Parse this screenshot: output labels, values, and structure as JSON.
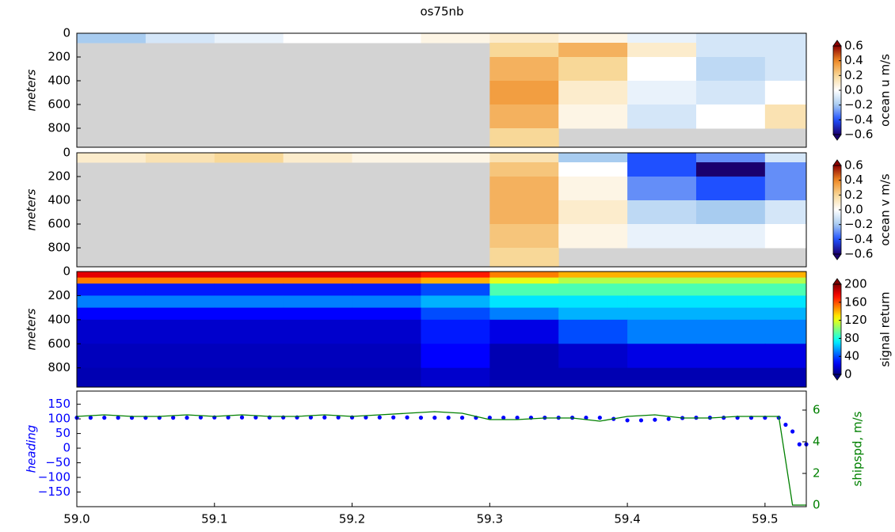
{
  "title": "os75nb",
  "chart_data": [
    {
      "type": "heatmap",
      "ylabel": "meters",
      "colorbar_label": "ocean u m/s",
      "colormap": "diverging",
      "missing_color": "#d3d3d3",
      "xlim": [
        59.0,
        59.53
      ],
      "ylim": [
        960,
        0
      ],
      "yticks": [
        0,
        200,
        400,
        600,
        800
      ],
      "clim": [
        -0.6,
        0.6
      ],
      "cticks": [
        0.6,
        0.4,
        0.2,
        {
          "value": 0.0,
          "label": "0.0"
        },
        {
          "value": -0.2,
          "label": "−0.2"
        },
        {
          "value": -0.4,
          "label": "−0.4"
        },
        {
          "value": -0.6,
          "label": "−0.6"
        }
      ],
      "xbins": [
        59.0,
        59.05,
        59.1,
        59.15,
        59.2,
        59.25,
        59.3,
        59.35,
        59.4,
        59.45,
        59.5,
        59.53
      ],
      "ybins": [
        0,
        80,
        200,
        400,
        600,
        800,
        960
      ],
      "values": [
        [
          -0.2,
          -0.1,
          -0.05,
          0,
          0,
          0.05,
          0.1,
          0.05,
          -0.05,
          -0.1,
          -0.1
        ],
        [
          null,
          null,
          null,
          null,
          null,
          null,
          0.2,
          0.3,
          0.1,
          -0.1,
          -0.1
        ],
        [
          null,
          null,
          null,
          null,
          null,
          null,
          0.3,
          0.2,
          0,
          -0.15,
          -0.1
        ],
        [
          null,
          null,
          null,
          null,
          null,
          null,
          0.35,
          0.1,
          -0.05,
          -0.1,
          0
        ],
        [
          null,
          null,
          null,
          null,
          null,
          null,
          0.3,
          0.05,
          -0.1,
          0,
          0.15
        ],
        [
          null,
          null,
          null,
          null,
          null,
          null,
          0.2,
          null,
          null,
          null,
          null
        ]
      ]
    },
    {
      "type": "heatmap",
      "ylabel": "meters",
      "colorbar_label": "ocean v m/s",
      "colormap": "diverging",
      "missing_color": "#d3d3d3",
      "xlim": [
        59.0,
        59.53
      ],
      "ylim": [
        960,
        0
      ],
      "yticks": [
        0,
        200,
        400,
        600,
        800
      ],
      "clim": [
        -0.6,
        0.6
      ],
      "cticks": [
        0.6,
        0.4,
        0.2,
        {
          "value": 0.0,
          "label": "0.0"
        },
        {
          "value": -0.2,
          "label": "−0.2"
        },
        {
          "value": -0.4,
          "label": "−0.4"
        },
        {
          "value": -0.6,
          "label": "−0.6"
        }
      ],
      "xbins": [
        59.0,
        59.05,
        59.1,
        59.15,
        59.2,
        59.25,
        59.3,
        59.35,
        59.4,
        59.45,
        59.5,
        59.53
      ],
      "ybins": [
        0,
        80,
        200,
        400,
        600,
        800,
        960
      ],
      "values": [
        [
          0.1,
          0.15,
          0.2,
          0.1,
          0.05,
          0.05,
          0.15,
          -0.2,
          -0.4,
          -0.3,
          -0.1
        ],
        [
          null,
          null,
          null,
          null,
          null,
          null,
          0.25,
          0,
          -0.4,
          -0.6,
          -0.3
        ],
        [
          null,
          null,
          null,
          null,
          null,
          null,
          0.3,
          0.05,
          -0.3,
          -0.4,
          -0.3
        ],
        [
          null,
          null,
          null,
          null,
          null,
          null,
          0.3,
          0.1,
          -0.15,
          -0.2,
          -0.1
        ],
        [
          null,
          null,
          null,
          null,
          null,
          null,
          0.25,
          0.05,
          -0.05,
          -0.05,
          0
        ],
        [
          null,
          null,
          null,
          null,
          null,
          null,
          0.2,
          null,
          null,
          null,
          null
        ]
      ]
    },
    {
      "type": "heatmap",
      "ylabel": "meters",
      "colorbar_label": "signal return",
      "colormap": "jet",
      "missing_color": "#d3d3d3",
      "xlim": [
        59.0,
        59.53
      ],
      "ylim": [
        960,
        0
      ],
      "yticks": [
        0,
        200,
        400,
        600,
        800
      ],
      "clim": [
        0,
        200
      ],
      "cticks": [
        200,
        160,
        120,
        80,
        40,
        0
      ],
      "xbins": [
        59.0,
        59.05,
        59.1,
        59.15,
        59.2,
        59.25,
        59.3,
        59.35,
        59.4,
        59.45,
        59.5,
        59.53
      ],
      "ybins": [
        0,
        50,
        100,
        200,
        300,
        400,
        600,
        800,
        960
      ],
      "values": [
        [
          180,
          180,
          180,
          180,
          180,
          170,
          150,
          140,
          140,
          140,
          140
        ],
        [
          150,
          150,
          150,
          150,
          150,
          140,
          120,
          110,
          110,
          110,
          110
        ],
        [
          30,
          30,
          30,
          30,
          30,
          40,
          90,
          90,
          90,
          90,
          90
        ],
        [
          50,
          50,
          50,
          50,
          50,
          60,
          70,
          70,
          70,
          70,
          70
        ],
        [
          25,
          25,
          25,
          25,
          25,
          40,
          50,
          60,
          60,
          60,
          60
        ],
        [
          15,
          15,
          15,
          15,
          15,
          30,
          20,
          40,
          50,
          50,
          50
        ],
        [
          12,
          12,
          12,
          12,
          12,
          25,
          10,
          15,
          20,
          20,
          20
        ],
        [
          10,
          10,
          10,
          10,
          10,
          15,
          10,
          10,
          10,
          10,
          10
        ]
      ]
    },
    {
      "type": "dual",
      "ylabel": "heading",
      "y2label": "shipspd, m/s",
      "xlim": [
        59.0,
        59.53
      ],
      "xticks": [
        {
          "value": 59.0,
          "label": "59.0"
        },
        {
          "value": 59.1,
          "label": "59.1"
        },
        {
          "value": 59.2,
          "label": "59.2"
        },
        {
          "value": 59.3,
          "label": "59.3"
        },
        {
          "value": 59.4,
          "label": "59.4"
        },
        {
          "value": 59.5,
          "label": "59.5"
        }
      ],
      "ylim": [
        -200,
        195
      ],
      "yticks": [
        150,
        100,
        50,
        0,
        {
          "value": -50,
          "label": "−50"
        },
        {
          "value": -100,
          "label": "−100"
        },
        {
          "value": -150,
          "label": "−150"
        }
      ],
      "y2lim": [
        -0.1,
        7.2
      ],
      "y2ticks": [
        0,
        2,
        4,
        6
      ],
      "series": [
        {
          "name": "heading",
          "kind": "scatter",
          "color": "#0000ff",
          "x": [
            59.0,
            59.01,
            59.02,
            59.03,
            59.04,
            59.05,
            59.06,
            59.07,
            59.08,
            59.09,
            59.1,
            59.11,
            59.12,
            59.13,
            59.14,
            59.15,
            59.16,
            59.17,
            59.18,
            59.19,
            59.2,
            59.21,
            59.22,
            59.23,
            59.24,
            59.25,
            59.26,
            59.27,
            59.28,
            59.29,
            59.3,
            59.31,
            59.32,
            59.33,
            59.34,
            59.35,
            59.36,
            59.37,
            59.38,
            59.39,
            59.4,
            59.41,
            59.42,
            59.43,
            59.44,
            59.45,
            59.46,
            59.47,
            59.48,
            59.49,
            59.5,
            59.51,
            59.515,
            59.52,
            59.525,
            59.53
          ],
          "values": [
            104,
            104,
            104,
            104,
            104,
            104,
            104,
            104,
            104,
            105,
            105,
            105,
            105,
            105,
            105,
            105,
            105,
            105,
            105,
            105,
            105,
            105,
            105,
            105,
            105,
            104,
            104,
            104,
            104,
            104,
            104,
            104,
            104,
            104,
            104,
            104,
            104,
            104,
            104,
            100,
            95,
            95,
            97,
            100,
            103,
            104,
            104,
            104,
            104,
            104,
            104,
            104,
            80,
            57,
            13,
            13
          ]
        },
        {
          "name": "shipspd",
          "kind": "line",
          "color": "#008000",
          "axis": "y2",
          "x": [
            59.0,
            59.02,
            59.04,
            59.06,
            59.08,
            59.1,
            59.12,
            59.14,
            59.16,
            59.18,
            59.2,
            59.22,
            59.24,
            59.26,
            59.28,
            59.3,
            59.32,
            59.34,
            59.36,
            59.38,
            59.4,
            59.42,
            59.44,
            59.46,
            59.48,
            59.5,
            59.51,
            59.52,
            59.53
          ],
          "values": [
            5.6,
            5.7,
            5.6,
            5.6,
            5.7,
            5.6,
            5.7,
            5.6,
            5.6,
            5.7,
            5.6,
            5.7,
            5.8,
            5.9,
            5.8,
            5.4,
            5.4,
            5.5,
            5.5,
            5.3,
            5.6,
            5.7,
            5.5,
            5.5,
            5.6,
            5.6,
            5.6,
            0,
            0
          ]
        }
      ]
    }
  ]
}
